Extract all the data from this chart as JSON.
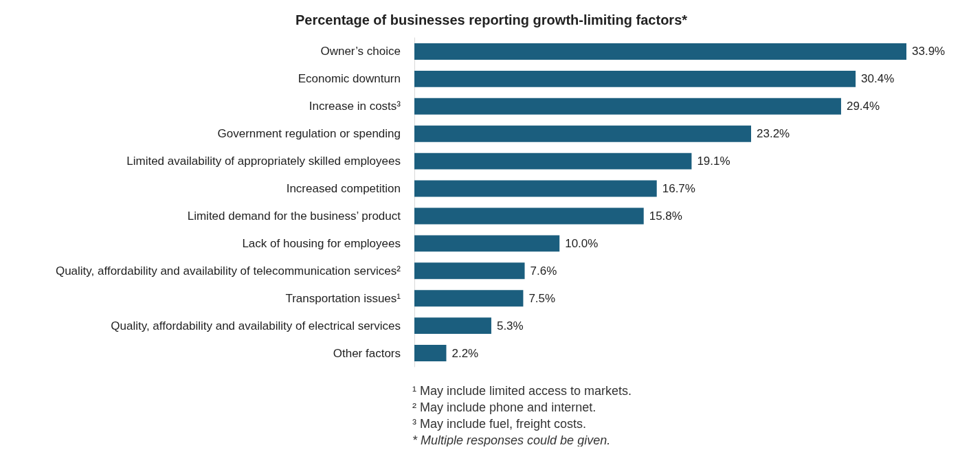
{
  "chart_data": {
    "type": "bar",
    "orientation": "horizontal",
    "title": "Percentage of businesses reporting growth-limiting factors*",
    "categories": [
      "Owner’s choice",
      "Economic downturn",
      "Increase in costs³",
      "Government regulation or spending",
      "Limited availability of appropriately skilled employees",
      "Increased competition",
      "Limited demand for the business’ product",
      "Lack of housing for employees",
      "Quality, affordability and availability of telecommunication services²",
      "Transportation issues¹",
      "Quality, affordability and availability of electrical services",
      "Other factors"
    ],
    "values": [
      33.9,
      30.4,
      29.4,
      23.2,
      19.1,
      16.7,
      15.8,
      10.0,
      7.6,
      7.5,
      5.3,
      2.2
    ],
    "value_labels": [
      "33.9%",
      "30.4%",
      "29.4%",
      "23.2%",
      "19.1%",
      "16.7%",
      "15.8%",
      "10.0%",
      "7.6%",
      "7.5%",
      "5.3%",
      "2.2%"
    ],
    "color": "#1b5e7e",
    "annotations": [
      "¹ May include limited access to markets.",
      "² May include phone and internet.",
      "³ May include fuel, freight costs.",
      "* Multiple responses could be given."
    ]
  }
}
